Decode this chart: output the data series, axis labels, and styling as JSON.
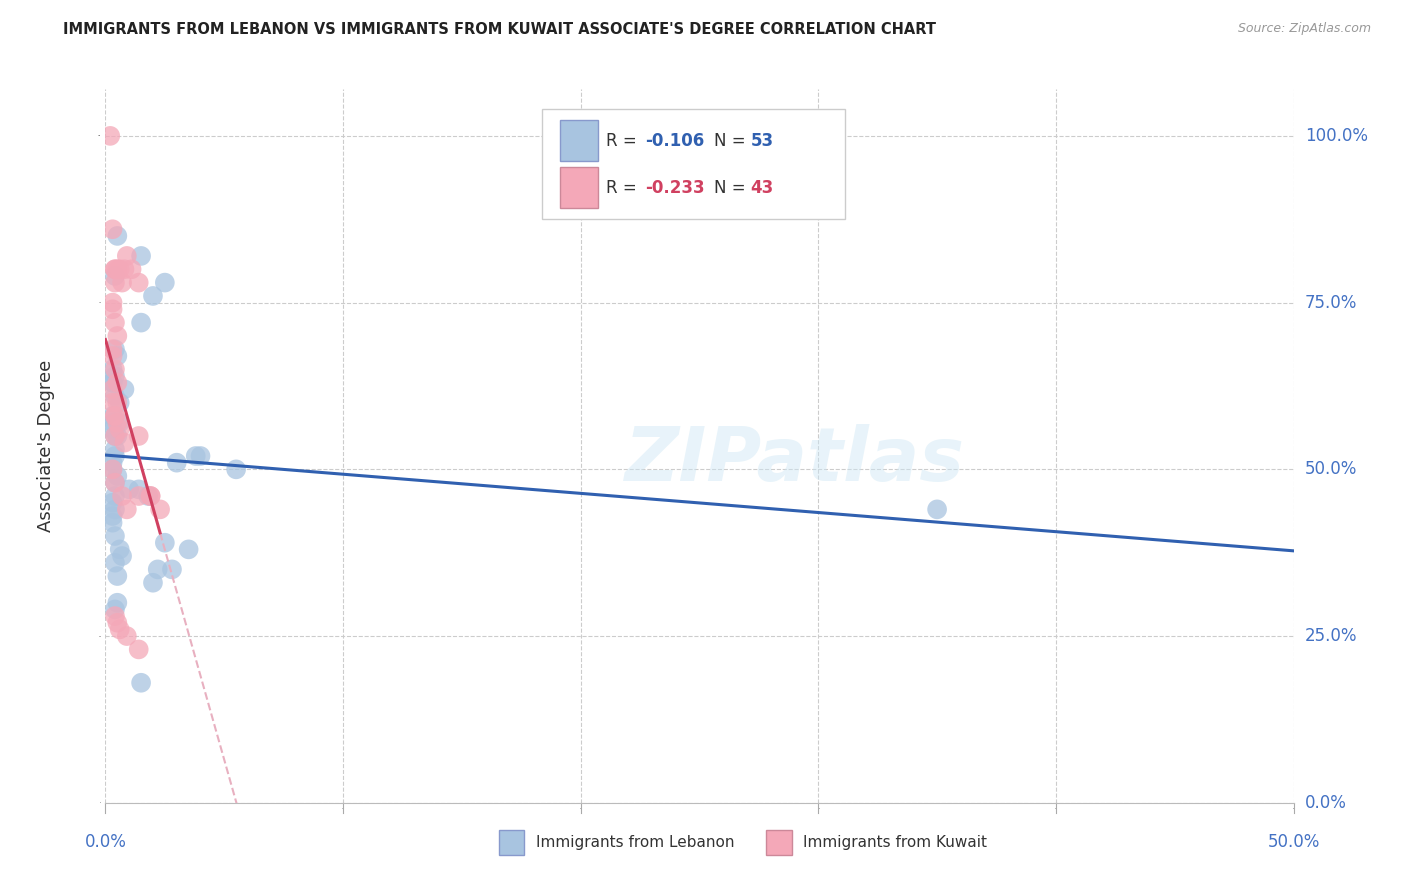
{
  "title": "IMMIGRANTS FROM LEBANON VS IMMIGRANTS FROM KUWAIT ASSOCIATE'S DEGREE CORRELATION CHART",
  "source": "Source: ZipAtlas.com",
  "ylabel": "Associate's Degree",
  "ytick_vals": [
    0,
    25,
    50,
    75,
    100
  ],
  "ytick_labels": [
    "0.0%",
    "25.0%",
    "50.0%",
    "75.0%",
    "100.0%"
  ],
  "color_lebanon": "#a8c4e0",
  "color_kuwait": "#f4a8b8",
  "trendline_lebanon_color": "#3060b0",
  "trendline_kuwait_color": "#d04060",
  "trendline_kuwait_dashed_color": "#e8b0c0",
  "background_color": "#ffffff",
  "title_color": "#222222",
  "axis_label_color": "#4472c4",
  "watermark": "ZIPatlas",
  "lebanon_x": [
    0.5,
    1.5,
    1.5,
    2.0,
    2.5,
    0.4,
    0.4,
    0.5,
    0.3,
    0.3,
    0.3,
    0.4,
    0.4,
    0.6,
    0.8,
    0.3,
    0.3,
    0.3,
    0.4,
    0.4,
    0.5,
    0.6,
    0.3,
    0.3,
    0.4,
    0.4,
    0.5,
    0.3,
    0.3,
    0.3,
    0.4,
    0.4,
    3.0,
    4.0,
    5.5,
    0.4,
    0.5,
    0.6,
    1.4,
    1.8,
    2.5,
    3.5,
    0.4,
    0.5,
    2.0,
    2.2,
    2.8,
    1.5,
    3.8,
    0.4,
    0.7,
    1.0,
    35.0
  ],
  "lebanon_y": [
    85,
    82,
    72,
    76,
    78,
    79,
    68,
    67,
    65,
    63,
    63,
    61,
    64,
    60,
    62,
    58,
    57,
    56,
    55,
    53,
    55,
    57,
    50,
    51,
    52,
    48,
    49,
    45,
    42,
    43,
    44,
    46,
    51,
    52,
    50,
    36,
    34,
    38,
    47,
    46,
    39,
    38,
    29,
    30,
    33,
    35,
    35,
    18,
    52,
    40,
    37,
    47,
    44
  ],
  "kuwait_x": [
    0.2,
    0.3,
    0.4,
    0.4,
    0.4,
    0.5,
    0.6,
    0.7,
    0.8,
    0.9,
    1.1,
    1.4,
    1.9,
    2.3,
    0.3,
    0.3,
    0.4,
    0.5,
    0.3,
    0.3,
    0.4,
    0.5,
    0.3,
    0.3,
    0.4,
    0.5,
    0.4,
    1.4,
    0.3,
    0.4,
    0.7,
    0.9,
    1.9,
    0.4,
    0.5,
    0.6,
    0.9,
    1.4,
    0.4,
    0.5,
    0.6,
    0.8,
    1.4
  ],
  "kuwait_y": [
    100,
    86,
    80,
    80,
    78,
    80,
    80,
    78,
    80,
    82,
    80,
    78,
    46,
    44,
    75,
    74,
    72,
    70,
    68,
    67,
    65,
    63,
    62,
    60,
    58,
    57,
    55,
    46,
    50,
    48,
    46,
    44,
    46,
    28,
    27,
    26,
    25,
    23,
    58,
    60,
    56,
    54,
    55
  ],
  "xlim": [
    0,
    50
  ],
  "ylim": [
    0,
    107
  ]
}
